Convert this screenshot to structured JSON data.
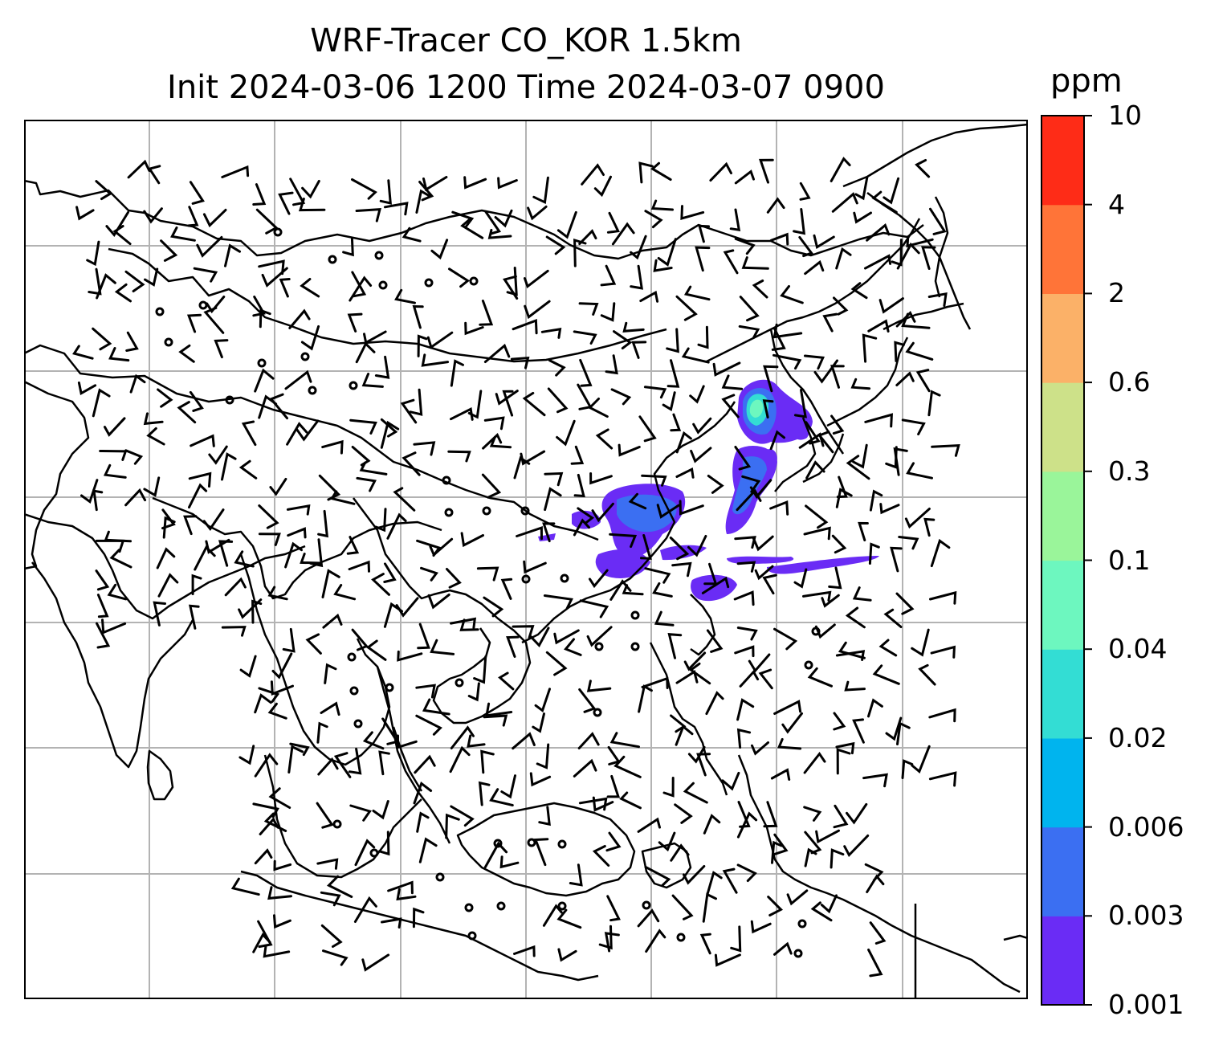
{
  "title": {
    "line1": "WRF-Tracer CO_KOR 1.5km",
    "line2": "Init 2024-03-06 1200 Time 2024-03-07 0900"
  },
  "colorbar": {
    "unit": "ppm",
    "levels": [
      "0.001",
      "0.003",
      "0.006",
      "0.02",
      "0.04",
      "0.1",
      "0.3",
      "0.6",
      "2",
      "4",
      "10"
    ],
    "colors": [
      "#6a2cf5",
      "#3b6ff2",
      "#00b4ee",
      "#33ddd4",
      "#6df7bf",
      "#9af59a",
      "#cde189",
      "#fbb168",
      "#ff7438",
      "#fe2c17"
    ]
  },
  "map": {
    "gridlines": true,
    "gridline_color": "#b3b3b3",
    "coastline_color": "#000000",
    "wind_barbs": true
  }
}
